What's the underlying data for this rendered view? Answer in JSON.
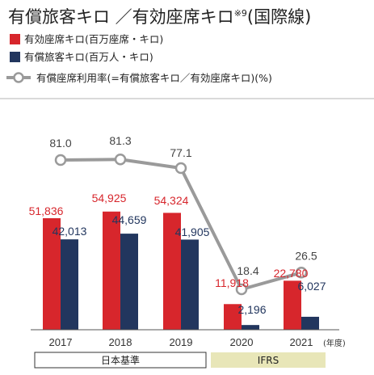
{
  "title": {
    "main": "有償旅客キロ ／有効座席キロ",
    "note_mark": "※9",
    "scope": "(国際線)"
  },
  "legend": {
    "ask_label": "有効座席キロ(百万座席・キロ)",
    "rpk_label": "有償旅客キロ(百万人・キロ)",
    "lf_label": "有償座席利用率(=有償旅客キロ／有効座席キロ)(%)"
  },
  "colors": {
    "ask": "#d7262c",
    "rpk": "#22365e",
    "lf_line": "#9a9a9a",
    "basis_jgaap_bg": "#ffffff",
    "basis_ifrs_bg": "#e8e6b8"
  },
  "x_unit_label": "(年度)",
  "basis": {
    "jgaap": "日本基準",
    "ifrs": "IFRS"
  },
  "chart_data": {
    "type": "bar",
    "categories": [
      "2017",
      "2018",
      "2019",
      "2020",
      "2021"
    ],
    "series": [
      {
        "name": "有効座席キロ(百万座席・キロ)",
        "values": [
          51836,
          54925,
          54324,
          11918,
          22780
        ],
        "labels": [
          "51,836",
          "54,925",
          "54,324",
          "11,918",
          "22,780"
        ]
      },
      {
        "name": "有償旅客キロ(百万人・キロ)",
        "values": [
          42013,
          44659,
          41905,
          2196,
          6027
        ],
        "labels": [
          "42,013",
          "44,659",
          "41,905",
          "2,196",
          "6,027"
        ]
      }
    ],
    "line_series": {
      "name": "有償座席利用率(=有償旅客キロ／有効座席キロ)(%)",
      "values": [
        81.0,
        81.3,
        77.1,
        18.4,
        26.5
      ],
      "labels": [
        "81.0",
        "81.3",
        "77.1",
        "18.4",
        "26.5"
      ]
    },
    "xlabel": "(年度)",
    "ylabel": "",
    "ylim": [
      0,
      100000
    ],
    "grid": false,
    "legend_position": "top-left"
  }
}
